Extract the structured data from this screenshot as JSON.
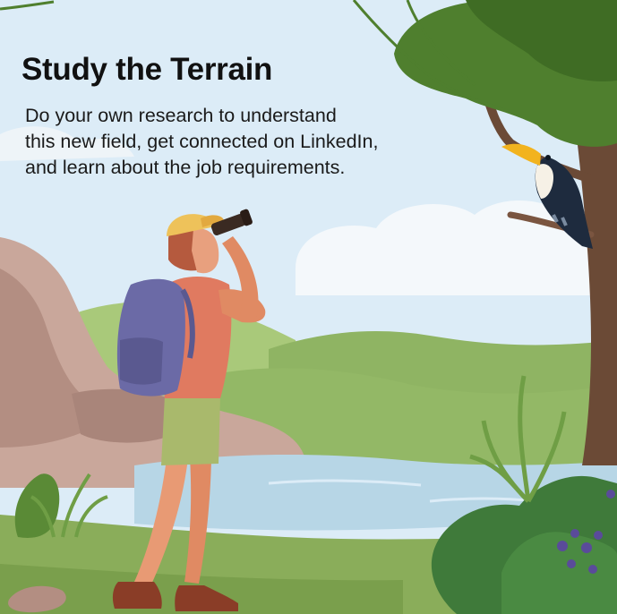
{
  "headline": "Study the Terrain",
  "body_lines": [
    "Do your own research to understand",
    "this new field, get connected on LinkedIn,",
    "and learn about the job requirements."
  ],
  "colors": {
    "sky": "#dcecf7",
    "cloud": "#f4f8fb",
    "rock": "#c9a79b",
    "grass_light": "#a9c97a",
    "grass_dark": "#6e9a45",
    "river": "#b7d6e6",
    "foliage": "#4f7f2e",
    "trunk": "#6b4a36",
    "backpack": "#6b6aa6",
    "shirt": "#e07a60",
    "shorts": "#a9b96c",
    "cap": "#eec25a",
    "toucan_beak": "#f2b31e"
  }
}
